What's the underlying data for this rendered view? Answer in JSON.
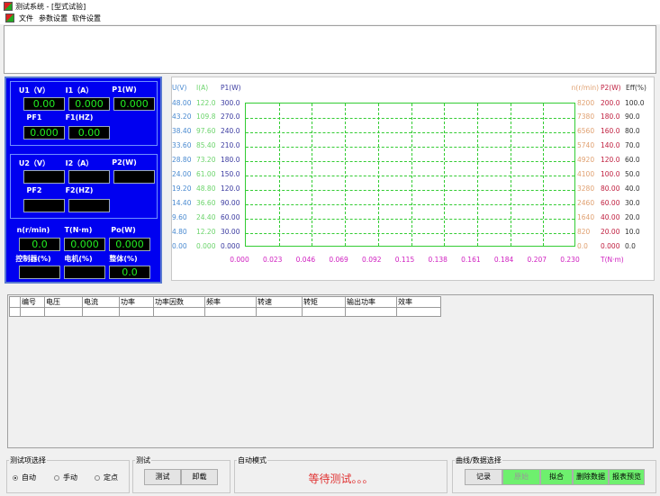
{
  "window": {
    "title": "测试系统 - [型式试验]"
  },
  "menu": [
    "文件",
    "参数设置",
    "软件设置"
  ],
  "panel1": {
    "labels": [
      "U1（V）",
      "I1（A）",
      "P1(W)",
      "PF1",
      "F1(HZ)"
    ],
    "values": [
      "0.00",
      "0.000",
      "0.000",
      "0.000",
      "0.00"
    ]
  },
  "panel2": {
    "labels": [
      "U2（V）",
      "I2（A）",
      "P2(W)",
      "PF2",
      "F2(HZ)"
    ],
    "values": [
      "",
      "",
      "",
      "",
      ""
    ]
  },
  "panel3": {
    "labels": [
      "n(r/min)",
      "T(N·m)",
      "Po(W)",
      "控制器(%)",
      "电机(%)",
      "整体(%)"
    ],
    "values": [
      "0.0",
      "0.000",
      "0.000",
      "",
      "",
      "0.0"
    ]
  },
  "chart": {
    "axes": [
      {
        "title": "U(V)",
        "color": "#4a8ad0",
        "ticks": [
          "48.00",
          "43.20",
          "38.40",
          "33.60",
          "28.80",
          "24.00",
          "19.20",
          "14.40",
          "9.60",
          "4.80",
          "0.00"
        ]
      },
      {
        "title": "I(A)",
        "color": "#6cd46c",
        "ticks": [
          "122.0",
          "109.8",
          "97.60",
          "85.40",
          "73.20",
          "61.00",
          "48.80",
          "36.60",
          "24.40",
          "12.20",
          "0.000"
        ]
      },
      {
        "title": "P1(W)",
        "color": "#3a3aa0",
        "ticks": [
          "300.0",
          "270.0",
          "240.0",
          "210.0",
          "180.0",
          "150.0",
          "120.0",
          "90.00",
          "60.00",
          "30.00",
          "0.000"
        ]
      },
      {
        "title": "n(r/min)",
        "color": "#e0a070",
        "ticks": [
          "8200",
          "7380",
          "6560",
          "5740",
          "4920",
          "4100",
          "3280",
          "2460",
          "1640",
          "820",
          "0.0"
        ]
      },
      {
        "title": "P2(W)",
        "color": "#c02040",
        "ticks": [
          "200.0",
          "180.0",
          "160.0",
          "140.0",
          "120.0",
          "100.0",
          "80.00",
          "60.00",
          "40.00",
          "20.00",
          "0.000"
        ]
      },
      {
        "title": "Eff(%)",
        "color": "#333333",
        "ticks": [
          "100.0",
          "90.0",
          "80.0",
          "70.0",
          "60.0",
          "50.0",
          "40.0",
          "30.0",
          "20.0",
          "10.0",
          "0.0"
        ]
      }
    ],
    "x_ticks": [
      "0.000",
      "0.023",
      "0.046",
      "0.069",
      "0.092",
      "0.115",
      "0.138",
      "0.161",
      "0.184",
      "0.207",
      "0.230"
    ],
    "x_title": "T(N·m)",
    "x_color": "#d020c0",
    "grid_color": "#33cc33"
  },
  "table": {
    "headers": [
      "",
      "编号",
      "电压",
      "电流",
      "功率",
      "功率因数",
      "频率",
      "转速",
      "转矩",
      "输出功率",
      "效率"
    ]
  },
  "bottom": {
    "test_select": {
      "title": "测试项选择",
      "options": [
        "自动",
        "手动",
        "定点"
      ],
      "selected": 0
    },
    "test": {
      "title": "测试",
      "buttons": [
        "测试",
        "卸载"
      ]
    },
    "auto": {
      "title": "自动模式",
      "status": "等待测试。。。",
      "status_color": "#e03030"
    },
    "curve": {
      "title": "曲线/数据选择",
      "buttons": [
        "记录",
        "原始",
        "拟合",
        "删除数据",
        "报表预览"
      ]
    }
  }
}
